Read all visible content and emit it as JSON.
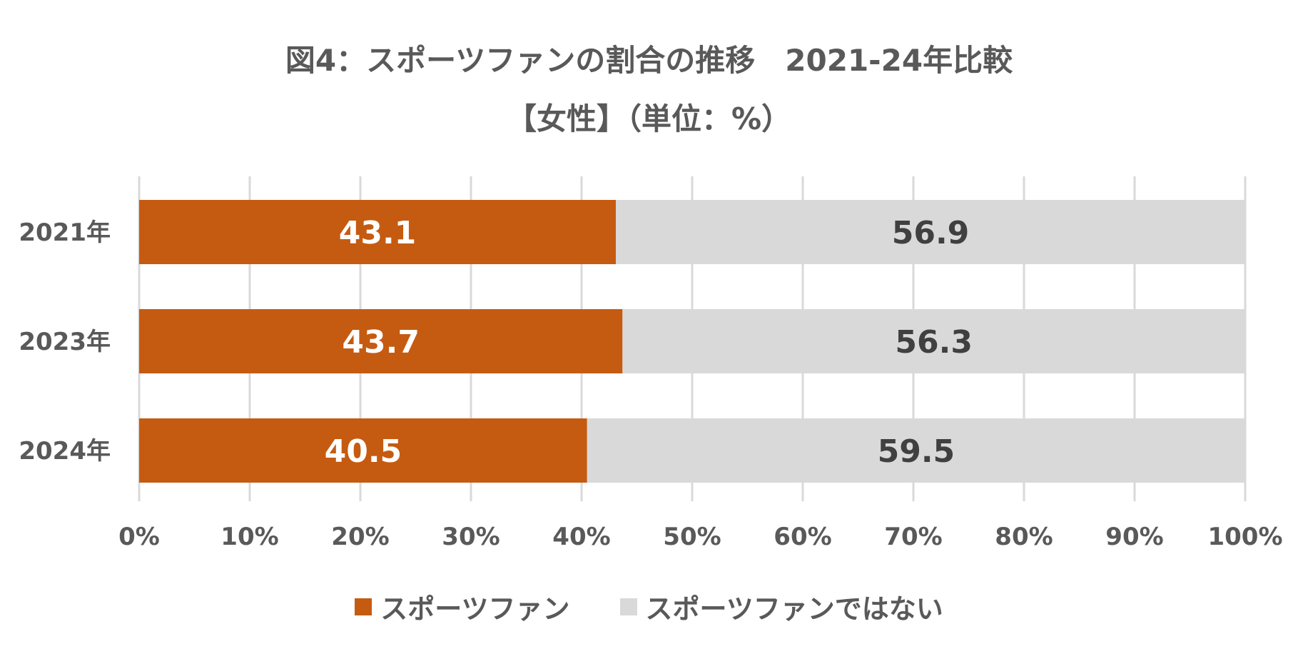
{
  "chart_data": {
    "type": "bar",
    "orientation": "horizontal",
    "stacked": "percent",
    "title": "図4：スポーツファンの割合の推移　2021-24年比較",
    "subtitle": "【女性】（単位：%）",
    "categories": [
      "2021年",
      "2023年",
      "2024年"
    ],
    "series": [
      {
        "name": "スポーツファン",
        "values": [
          43.1,
          43.7,
          40.5
        ],
        "color": "#C55A11",
        "label_color": "#FFFFFF"
      },
      {
        "name": "スポーツファンではない",
        "values": [
          56.9,
          56.3,
          59.5
        ],
        "color": "#D9D9D9",
        "label_color": "#404040"
      }
    ],
    "x_ticks": [
      "0%",
      "10%",
      "20%",
      "30%",
      "40%",
      "50%",
      "60%",
      "70%",
      "80%",
      "90%",
      "100%"
    ],
    "xlim": [
      0,
      100
    ],
    "grid": "vertical",
    "legend": "bottom",
    "gridline_color": "#D9D9D9",
    "text_color": "#595959"
  }
}
